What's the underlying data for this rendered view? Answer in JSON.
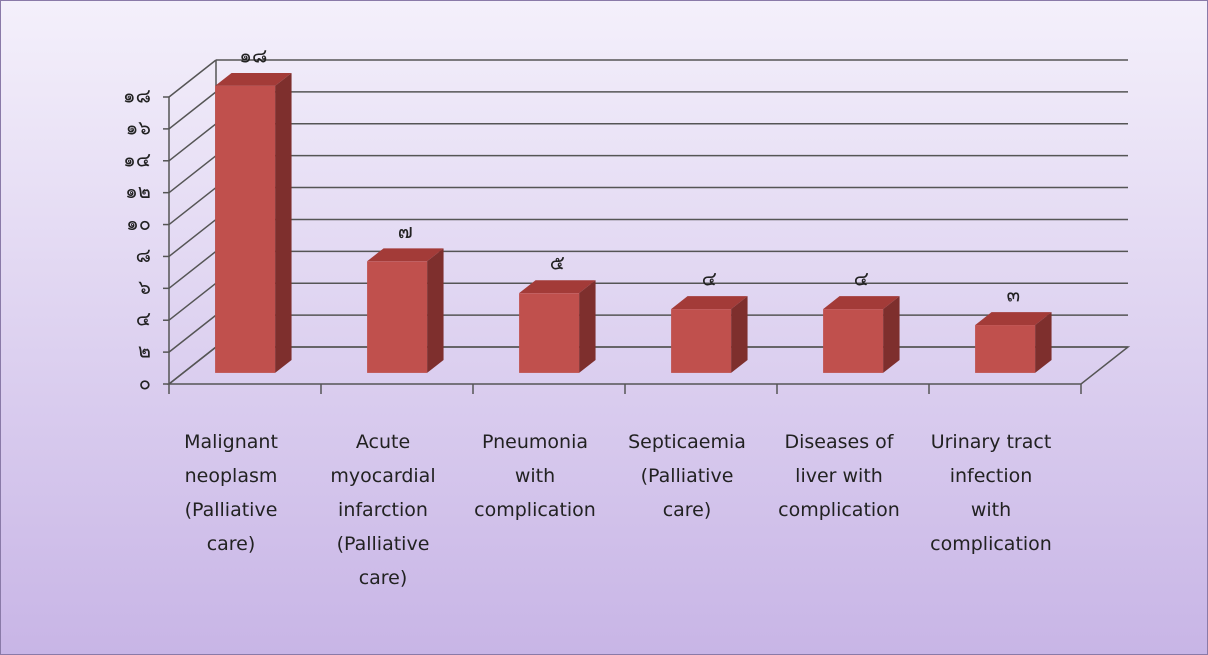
{
  "chart_data": {
    "type": "bar3d",
    "categories": [
      "Malignant neoplasm (Palliative care)",
      "Acute myocardial infarction (Palliative care)",
      "Pneumonia with complication",
      "Septicaemia (Palliative care)",
      "Diseases of liver with complication",
      "Urinary tract infection with complication"
    ],
    "values": [
      18,
      7,
      5,
      4,
      4,
      3
    ],
    "value_labels": [
      "๑๘",
      "๗",
      "๕",
      "๔",
      "๔",
      "๓"
    ],
    "color": "#c0504d",
    "ylim": [
      0,
      18
    ],
    "yticks": [
      {
        "value": 0,
        "label": "๐"
      },
      {
        "value": 2,
        "label": "๒"
      },
      {
        "value": 4,
        "label": "๔"
      },
      {
        "value": 6,
        "label": "๖"
      },
      {
        "value": 8,
        "label": "๘"
      },
      {
        "value": 10,
        "label": "๑๐"
      },
      {
        "value": 12,
        "label": "๑๒"
      },
      {
        "value": 14,
        "label": "๑๔"
      },
      {
        "value": 16,
        "label": "๑๖"
      },
      {
        "value": 18,
        "label": "๑๘"
      }
    ],
    "grid": true
  }
}
